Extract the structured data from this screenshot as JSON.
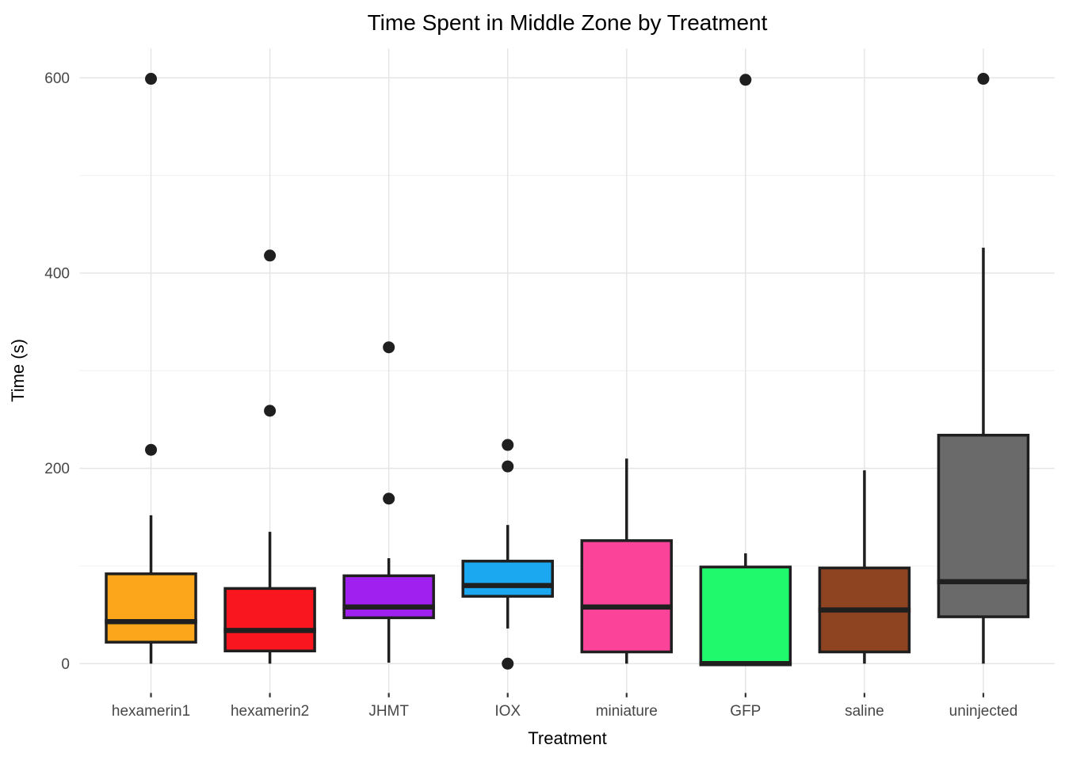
{
  "chart_data": {
    "type": "boxplot",
    "title": "Time Spent in Middle Zone by Treatment",
    "xlabel": "Treatment",
    "ylabel": "Time (s)",
    "ylim": [
      -30,
      630
    ],
    "yticks": [
      0,
      200,
      400,
      600
    ],
    "yminor": [
      100,
      300,
      500
    ],
    "grid": true,
    "legend": "none",
    "categories": [
      "hexamerin1",
      "hexamerin2",
      "JHMT",
      "IOX",
      "miniature",
      "GFP",
      "saline",
      "uninjected"
    ],
    "series": [
      {
        "name": "hexamerin1",
        "color": "#FBA61B",
        "whisker_low": 0,
        "q1": 22,
        "median": 43,
        "q3": 92,
        "whisker_high": 152,
        "outliers": [
          219,
          599
        ]
      },
      {
        "name": "hexamerin2",
        "color": "#F9161F",
        "whisker_low": 0,
        "q1": 13,
        "median": 34,
        "q3": 77,
        "whisker_high": 135,
        "outliers": [
          259,
          418
        ]
      },
      {
        "name": "JHMT",
        "color": "#A020F0",
        "whisker_low": 1,
        "q1": 47,
        "median": 58,
        "q3": 90,
        "whisker_high": 108,
        "outliers": [
          169,
          324
        ]
      },
      {
        "name": "IOX",
        "color": "#1CA8F0",
        "whisker_low": 36,
        "q1": 69,
        "median": 80,
        "q3": 105,
        "whisker_high": 142,
        "outliers": [
          0,
          202,
          224
        ]
      },
      {
        "name": "miniature",
        "color": "#FA4399",
        "whisker_low": 0,
        "q1": 12,
        "median": 58,
        "q3": 126,
        "whisker_high": 210,
        "outliers": []
      },
      {
        "name": "GFP",
        "color": "#20F96B",
        "whisker_low": 0,
        "q1": 0,
        "median": 0,
        "q3": 99,
        "whisker_high": 113,
        "outliers": [
          598
        ]
      },
      {
        "name": "saline",
        "color": "#8E4420",
        "whisker_low": 0,
        "q1": 12,
        "median": 55,
        "q3": 98,
        "whisker_high": 198,
        "outliers": []
      },
      {
        "name": "uninjected",
        "color": "#6A6A6A",
        "whisker_low": 0,
        "q1": 48,
        "median": 84,
        "q3": 234,
        "whisker_high": 426,
        "outliers": [
          599
        ]
      }
    ],
    "styles": {
      "box_border_color": "#1F1F1F",
      "median_color": "#1F1F1F",
      "whisker_color": "#1F1F1F",
      "outlier_color": "#1F1F1F",
      "grid_major_color": "#E4E4E4",
      "grid_minor_color": "#EFEFEF",
      "tick_mark_color": "#333333",
      "background_color": "#FFFFFF"
    }
  }
}
